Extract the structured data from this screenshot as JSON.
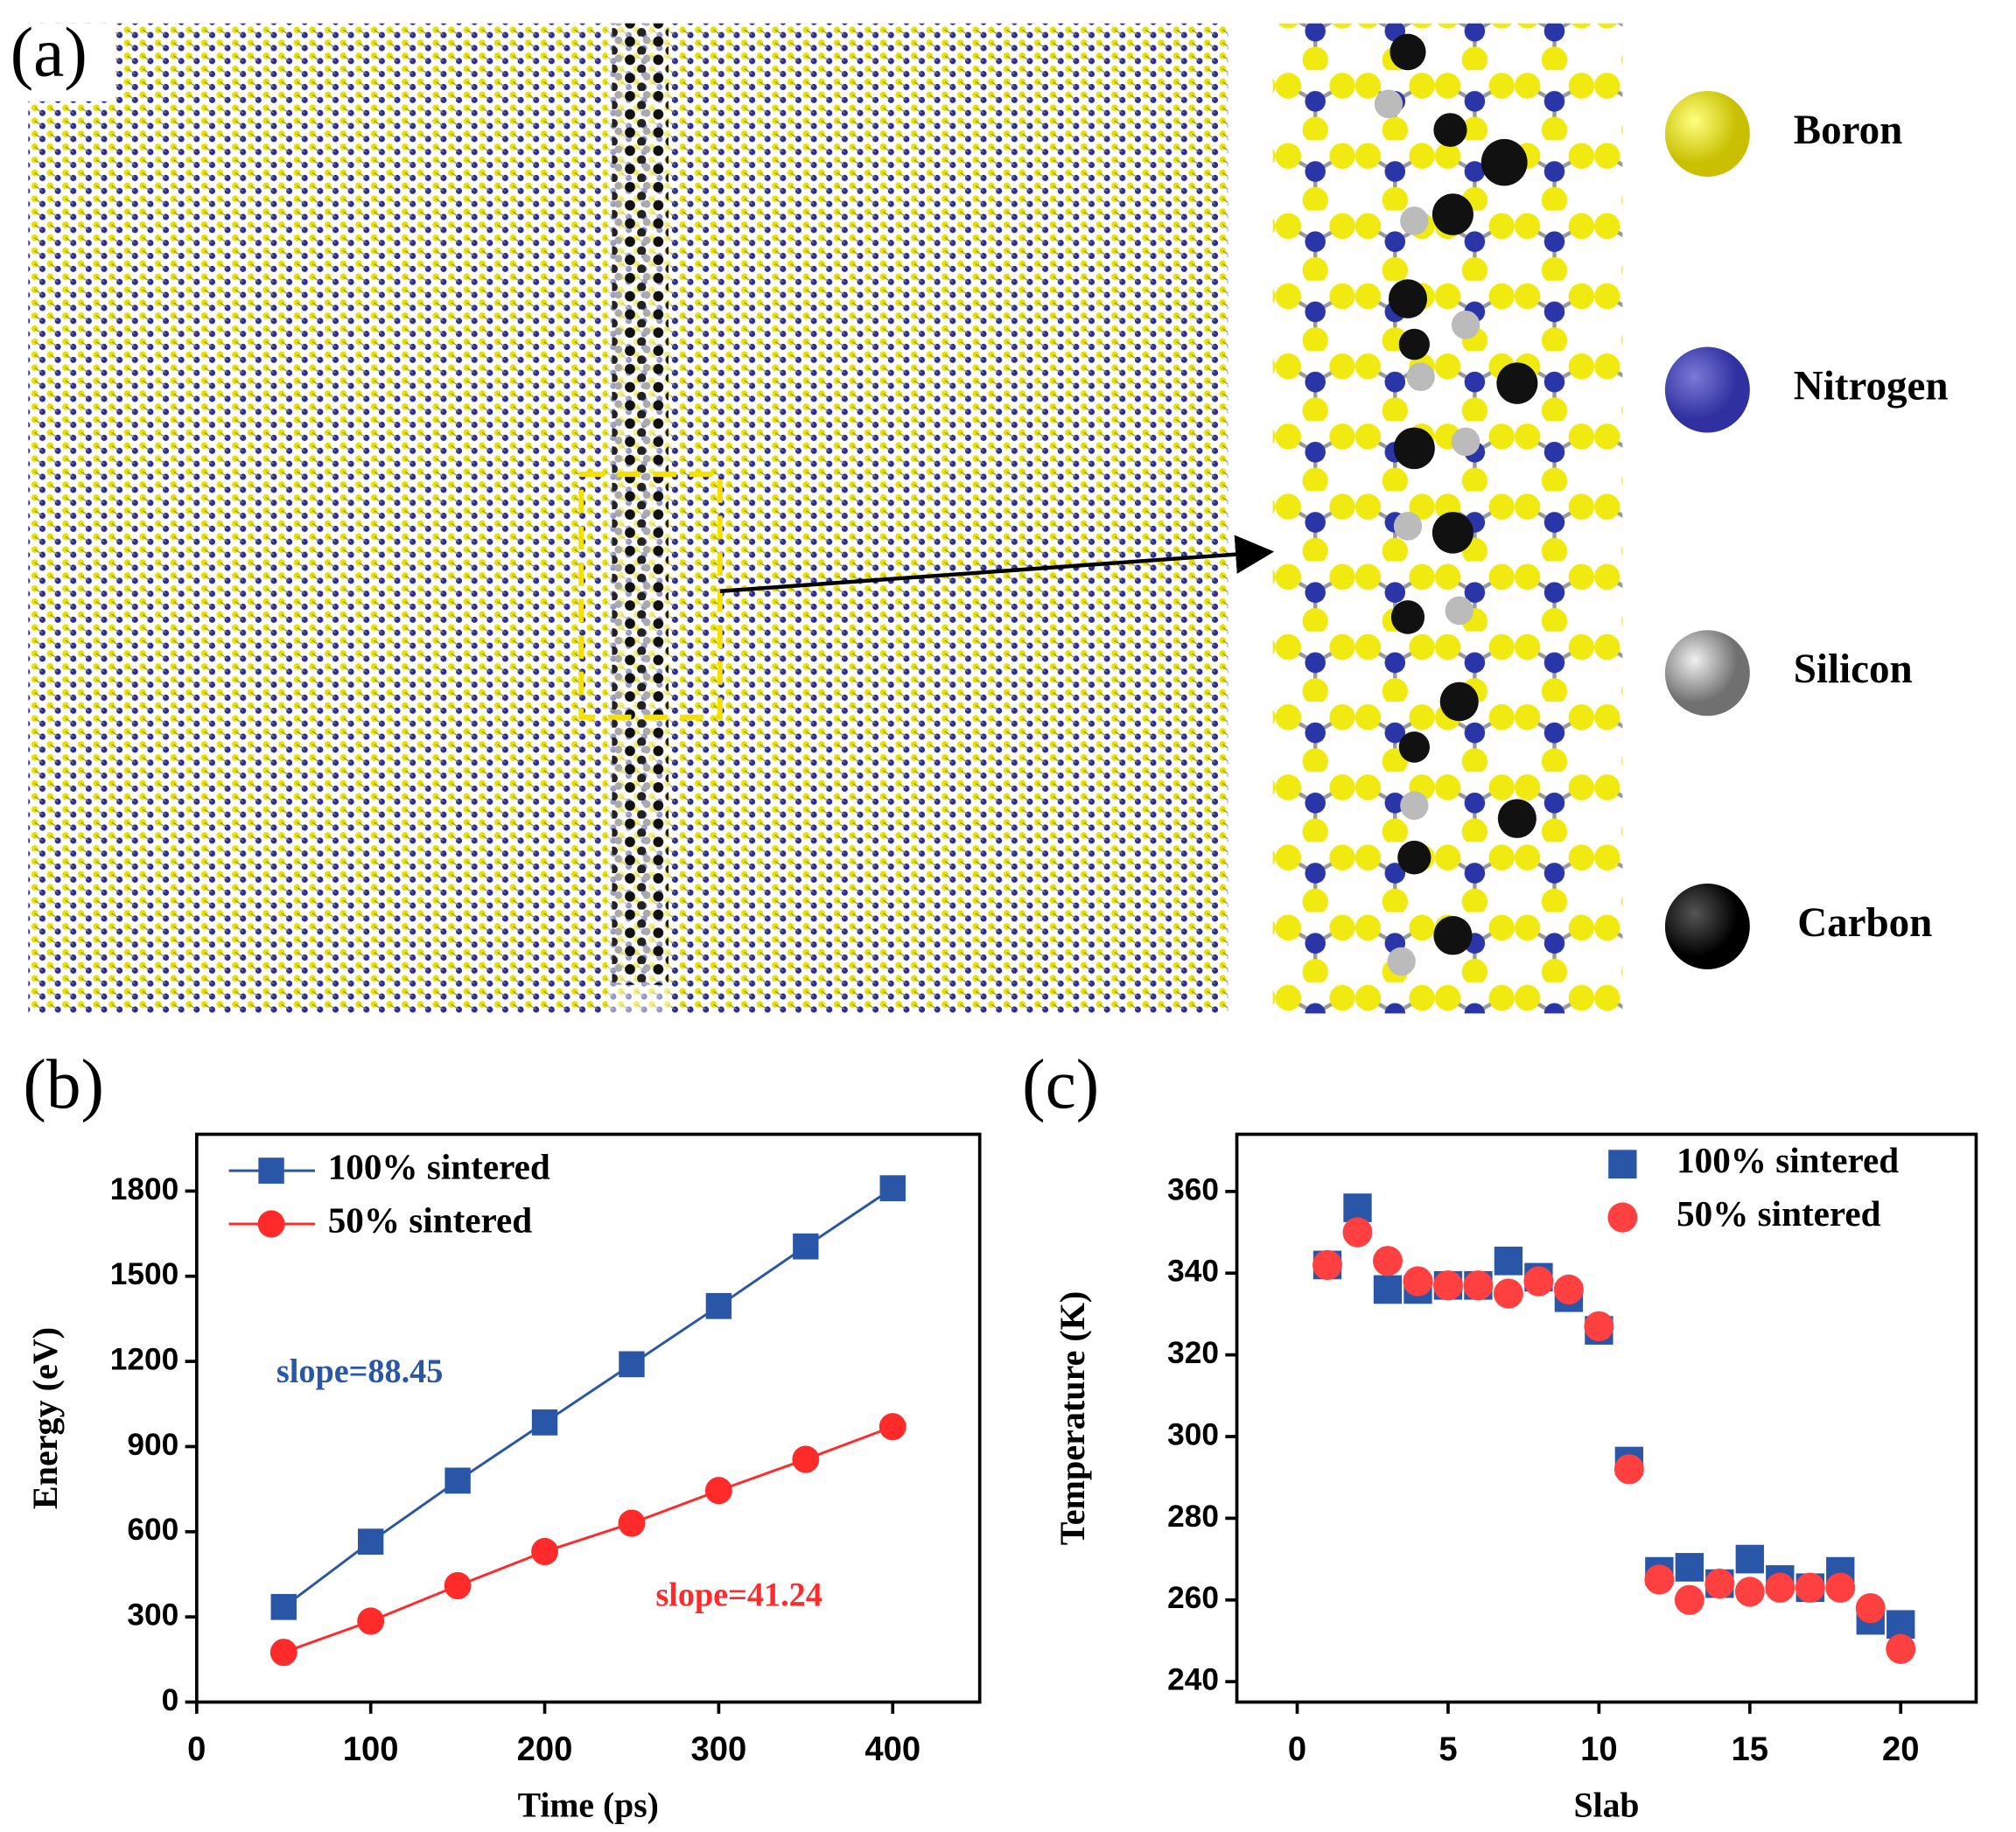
{
  "panels": [
    "(a)",
    "(b)",
    "(c)"
  ],
  "atom_legend": [
    "Boron",
    "Nitrogen",
    "Silicon",
    "Carbon"
  ],
  "chart_data": [
    {
      "type": "line",
      "x_label": "Time (ps)",
      "y_label": "Energy (eV)",
      "x": [
        50,
        100,
        150,
        200,
        250,
        300,
        350,
        400
      ],
      "series": [
        {
          "name": "100% sintered",
          "color": "#2a56a8",
          "marker": "square",
          "values": [
            335,
            565,
            780,
            985,
            1190,
            1395,
            1605,
            1810
          ]
        },
        {
          "name": "50% sintered",
          "color": "#ff2b2b",
          "marker": "circle",
          "values": [
            175,
            285,
            410,
            530,
            630,
            745,
            855,
            970
          ]
        }
      ],
      "annotations": [
        "slope=88.45",
        "slope=41.24"
      ],
      "xlim": [
        0,
        450
      ],
      "xticks": [
        0,
        100,
        200,
        300,
        400
      ],
      "ylim": [
        0,
        2000
      ],
      "yticks": [
        0,
        300,
        600,
        900,
        1200,
        1500,
        1800
      ],
      "legend": "upper left"
    },
    {
      "type": "scatter",
      "x_label": "Slab",
      "y_label": "Temperature (K)",
      "x": [
        1,
        2,
        3,
        4,
        5,
        6,
        7,
        8,
        9,
        10,
        11,
        12,
        13,
        14,
        15,
        16,
        17,
        18,
        19,
        20
      ],
      "series": [
        {
          "name": "100% sintered",
          "color": "#2a56a8",
          "marker": "square",
          "values": [
            342,
            356,
            336,
            336,
            337,
            337,
            343,
            339,
            334,
            326,
            294,
            267,
            268,
            264,
            270,
            265,
            263,
            267,
            255,
            254
          ]
        },
        {
          "name": "50% sintered",
          "color": "#ff4040",
          "marker": "circle",
          "values": [
            342,
            350,
            343,
            338,
            337,
            337,
            335,
            338,
            336,
            327,
            292,
            265,
            260,
            264,
            262,
            263,
            263,
            263,
            258,
            248
          ]
        }
      ],
      "xlim": [
        -2,
        22.5
      ],
      "xticks": [
        0,
        5,
        10,
        15,
        20
      ],
      "ylim": [
        235,
        374
      ],
      "yticks": [
        240,
        260,
        280,
        300,
        320,
        340,
        360
      ],
      "legend": "upper right"
    }
  ]
}
